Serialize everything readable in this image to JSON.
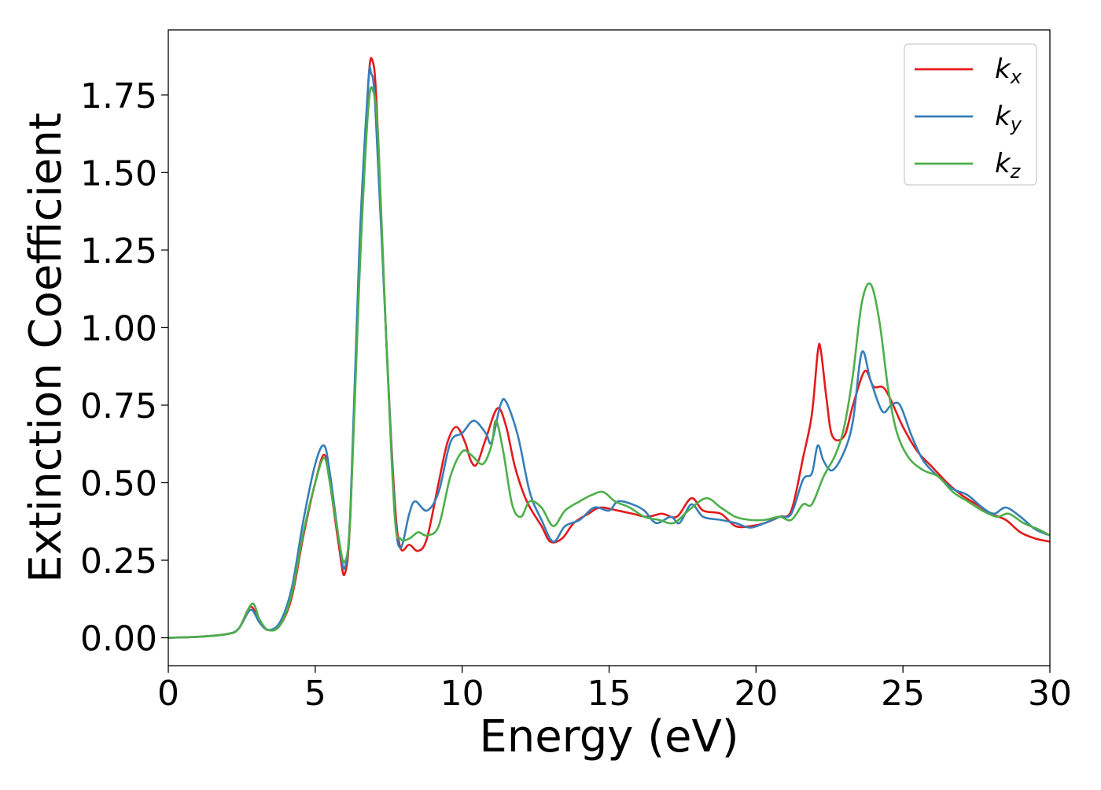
{
  "chart_data": {
    "type": "line",
    "title": "",
    "xlabel": "Energy (eV)",
    "ylabel": "Extinction Coefficient",
    "xlim": [
      0,
      30
    ],
    "ylim": [
      -0.09,
      1.96
    ],
    "xticks": [
      0,
      5,
      10,
      15,
      20,
      25,
      30
    ],
    "xtick_labels": [
      "0",
      "5",
      "10",
      "15",
      "20",
      "25",
      "30"
    ],
    "yticks": [
      0,
      0.25,
      0.5,
      0.75,
      1.0,
      1.25,
      1.5,
      1.75
    ],
    "ytick_labels": [
      "0.00",
      "0.25",
      "0.50",
      "0.75",
      "1.00",
      "1.25",
      "1.50",
      "1.75"
    ],
    "grid": false,
    "legend_position": "top-right",
    "series": [
      {
        "name": "k_x",
        "label_main": "k",
        "label_sub": "x",
        "color": "#e41a1c",
        "points": [
          [
            0,
            0
          ],
          [
            1,
            0.003
          ],
          [
            2,
            0.012
          ],
          [
            2.4,
            0.03
          ],
          [
            2.8,
            0.1
          ],
          [
            3.1,
            0.05
          ],
          [
            3.4,
            0.025
          ],
          [
            3.8,
            0.04
          ],
          [
            4.2,
            0.13
          ],
          [
            4.6,
            0.33
          ],
          [
            5,
            0.5
          ],
          [
            5.3,
            0.59
          ],
          [
            5.5,
            0.5
          ],
          [
            5.8,
            0.3
          ],
          [
            6,
            0.205
          ],
          [
            6.2,
            0.4
          ],
          [
            6.5,
            1.2
          ],
          [
            6.8,
            1.78
          ],
          [
            6.95,
            1.86
          ],
          [
            7.1,
            1.7
          ],
          [
            7.4,
            1.0
          ],
          [
            7.7,
            0.45
          ],
          [
            7.9,
            0.29
          ],
          [
            8.2,
            0.3
          ],
          [
            8.5,
            0.28
          ],
          [
            8.8,
            0.32
          ],
          [
            9.2,
            0.5
          ],
          [
            9.5,
            0.63
          ],
          [
            9.8,
            0.68
          ],
          [
            10.1,
            0.63
          ],
          [
            10.3,
            0.57
          ],
          [
            10.5,
            0.56
          ],
          [
            10.8,
            0.64
          ],
          [
            11.2,
            0.74
          ],
          [
            11.5,
            0.68
          ],
          [
            11.8,
            0.55
          ],
          [
            12.2,
            0.44
          ],
          [
            12.7,
            0.36
          ],
          [
            13,
            0.31
          ],
          [
            13.4,
            0.32
          ],
          [
            13.8,
            0.37
          ],
          [
            14.3,
            0.4
          ],
          [
            14.7,
            0.42
          ],
          [
            15.3,
            0.41
          ],
          [
            15.8,
            0.4
          ],
          [
            16.3,
            0.39
          ],
          [
            16.8,
            0.4
          ],
          [
            17.3,
            0.39
          ],
          [
            17.8,
            0.45
          ],
          [
            18.2,
            0.41
          ],
          [
            18.8,
            0.4
          ],
          [
            19.3,
            0.36
          ],
          [
            19.8,
            0.36
          ],
          [
            20.3,
            0.37
          ],
          [
            20.8,
            0.39
          ],
          [
            21.2,
            0.41
          ],
          [
            21.6,
            0.58
          ],
          [
            21.9,
            0.72
          ],
          [
            22.1,
            0.92
          ],
          [
            22.2,
            0.93
          ],
          [
            22.4,
            0.77
          ],
          [
            22.6,
            0.65
          ],
          [
            23,
            0.65
          ],
          [
            23.3,
            0.75
          ],
          [
            23.7,
            0.86
          ],
          [
            24,
            0.81
          ],
          [
            24.4,
            0.8
          ],
          [
            25,
            0.68
          ],
          [
            25.5,
            0.6
          ],
          [
            26,
            0.55
          ],
          [
            26.5,
            0.5
          ],
          [
            27,
            0.46
          ],
          [
            27.5,
            0.43
          ],
          [
            28,
            0.4
          ],
          [
            28.5,
            0.38
          ],
          [
            29,
            0.34
          ],
          [
            29.5,
            0.32
          ],
          [
            30,
            0.31
          ]
        ]
      },
      {
        "name": "k_y",
        "label_main": "k",
        "label_sub": "y",
        "color": "#377eb8",
        "points": [
          [
            0,
            0
          ],
          [
            1,
            0.003
          ],
          [
            2,
            0.012
          ],
          [
            2.4,
            0.03
          ],
          [
            2.8,
            0.09
          ],
          [
            3.1,
            0.05
          ],
          [
            3.4,
            0.025
          ],
          [
            3.8,
            0.05
          ],
          [
            4.2,
            0.16
          ],
          [
            4.6,
            0.38
          ],
          [
            5,
            0.56
          ],
          [
            5.3,
            0.62
          ],
          [
            5.5,
            0.53
          ],
          [
            5.8,
            0.32
          ],
          [
            6,
            0.225
          ],
          [
            6.2,
            0.42
          ],
          [
            6.5,
            1.25
          ],
          [
            6.8,
            1.78
          ],
          [
            6.9,
            1.82
          ],
          [
            7.05,
            1.7
          ],
          [
            7.4,
            1.0
          ],
          [
            7.7,
            0.42
          ],
          [
            7.9,
            0.29
          ],
          [
            8.2,
            0.4
          ],
          [
            8.4,
            0.44
          ],
          [
            8.8,
            0.41
          ],
          [
            9.2,
            0.47
          ],
          [
            9.6,
            0.63
          ],
          [
            10,
            0.66
          ],
          [
            10.4,
            0.7
          ],
          [
            10.8,
            0.66
          ],
          [
            11,
            0.63
          ],
          [
            11.3,
            0.75
          ],
          [
            11.5,
            0.76
          ],
          [
            11.9,
            0.65
          ],
          [
            12.3,
            0.47
          ],
          [
            12.7,
            0.38
          ],
          [
            13.1,
            0.31
          ],
          [
            13.5,
            0.36
          ],
          [
            14,
            0.38
          ],
          [
            14.5,
            0.42
          ],
          [
            15,
            0.41
          ],
          [
            15.3,
            0.44
          ],
          [
            15.8,
            0.43
          ],
          [
            16.2,
            0.41
          ],
          [
            16.6,
            0.37
          ],
          [
            17.1,
            0.39
          ],
          [
            17.4,
            0.37
          ],
          [
            17.8,
            0.43
          ],
          [
            18.2,
            0.39
          ],
          [
            18.8,
            0.38
          ],
          [
            19.3,
            0.37
          ],
          [
            19.8,
            0.355
          ],
          [
            20.3,
            0.37
          ],
          [
            20.8,
            0.39
          ],
          [
            21.2,
            0.4
          ],
          [
            21.6,
            0.51
          ],
          [
            21.9,
            0.53
          ],
          [
            22.1,
            0.62
          ],
          [
            22.3,
            0.57
          ],
          [
            22.6,
            0.54
          ],
          [
            23,
            0.6
          ],
          [
            23.3,
            0.7
          ],
          [
            23.6,
            0.92
          ],
          [
            23.9,
            0.83
          ],
          [
            24.3,
            0.73
          ],
          [
            24.6,
            0.75
          ],
          [
            24.9,
            0.75
          ],
          [
            25.3,
            0.65
          ],
          [
            25.7,
            0.57
          ],
          [
            26.2,
            0.52
          ],
          [
            26.7,
            0.48
          ],
          [
            27.2,
            0.46
          ],
          [
            27.7,
            0.42
          ],
          [
            28.1,
            0.4
          ],
          [
            28.5,
            0.42
          ],
          [
            29,
            0.39
          ],
          [
            29.5,
            0.35
          ],
          [
            30,
            0.33
          ]
        ]
      },
      {
        "name": "k_z",
        "label_main": "k",
        "label_sub": "z",
        "color": "#4daf4a",
        "points": [
          [
            0,
            0
          ],
          [
            1,
            0.003
          ],
          [
            2,
            0.012
          ],
          [
            2.4,
            0.03
          ],
          [
            2.85,
            0.11
          ],
          [
            3.1,
            0.06
          ],
          [
            3.4,
            0.025
          ],
          [
            3.8,
            0.04
          ],
          [
            4.2,
            0.14
          ],
          [
            4.6,
            0.34
          ],
          [
            5,
            0.5
          ],
          [
            5.3,
            0.58
          ],
          [
            5.5,
            0.5
          ],
          [
            5.8,
            0.32
          ],
          [
            6,
            0.245
          ],
          [
            6.2,
            0.4
          ],
          [
            6.5,
            1.15
          ],
          [
            6.8,
            1.7
          ],
          [
            6.98,
            1.76
          ],
          [
            7.15,
            1.6
          ],
          [
            7.4,
            1.0
          ],
          [
            7.7,
            0.4
          ],
          [
            7.9,
            0.32
          ],
          [
            8.2,
            0.32
          ],
          [
            8.5,
            0.34
          ],
          [
            8.8,
            0.33
          ],
          [
            9.2,
            0.36
          ],
          [
            9.6,
            0.52
          ],
          [
            10,
            0.6
          ],
          [
            10.3,
            0.59
          ],
          [
            10.7,
            0.56
          ],
          [
            11,
            0.62
          ],
          [
            11.15,
            0.7
          ],
          [
            11.4,
            0.6
          ],
          [
            11.7,
            0.43
          ],
          [
            12,
            0.39
          ],
          [
            12.3,
            0.44
          ],
          [
            12.7,
            0.42
          ],
          [
            13.1,
            0.36
          ],
          [
            13.5,
            0.41
          ],
          [
            14,
            0.44
          ],
          [
            14.4,
            0.46
          ],
          [
            14.8,
            0.47
          ],
          [
            15.2,
            0.44
          ],
          [
            15.7,
            0.42
          ],
          [
            16.2,
            0.39
          ],
          [
            16.7,
            0.38
          ],
          [
            17.2,
            0.37
          ],
          [
            17.7,
            0.41
          ],
          [
            18.3,
            0.45
          ],
          [
            18.8,
            0.42
          ],
          [
            19.3,
            0.39
          ],
          [
            19.8,
            0.38
          ],
          [
            20.3,
            0.38
          ],
          [
            20.8,
            0.39
          ],
          [
            21.2,
            0.38
          ],
          [
            21.6,
            0.43
          ],
          [
            21.9,
            0.43
          ],
          [
            22.3,
            0.52
          ],
          [
            22.7,
            0.59
          ],
          [
            23,
            0.68
          ],
          [
            23.3,
            0.85
          ],
          [
            23.6,
            1.08
          ],
          [
            23.9,
            1.14
          ],
          [
            24.2,
            1.02
          ],
          [
            24.5,
            0.8
          ],
          [
            24.8,
            0.66
          ],
          [
            25.2,
            0.58
          ],
          [
            25.7,
            0.54
          ],
          [
            26.2,
            0.52
          ],
          [
            26.7,
            0.47
          ],
          [
            27.2,
            0.44
          ],
          [
            27.7,
            0.41
          ],
          [
            28.2,
            0.39
          ],
          [
            28.6,
            0.4
          ],
          [
            29.1,
            0.37
          ],
          [
            29.6,
            0.35
          ],
          [
            30,
            0.33
          ]
        ]
      }
    ]
  }
}
